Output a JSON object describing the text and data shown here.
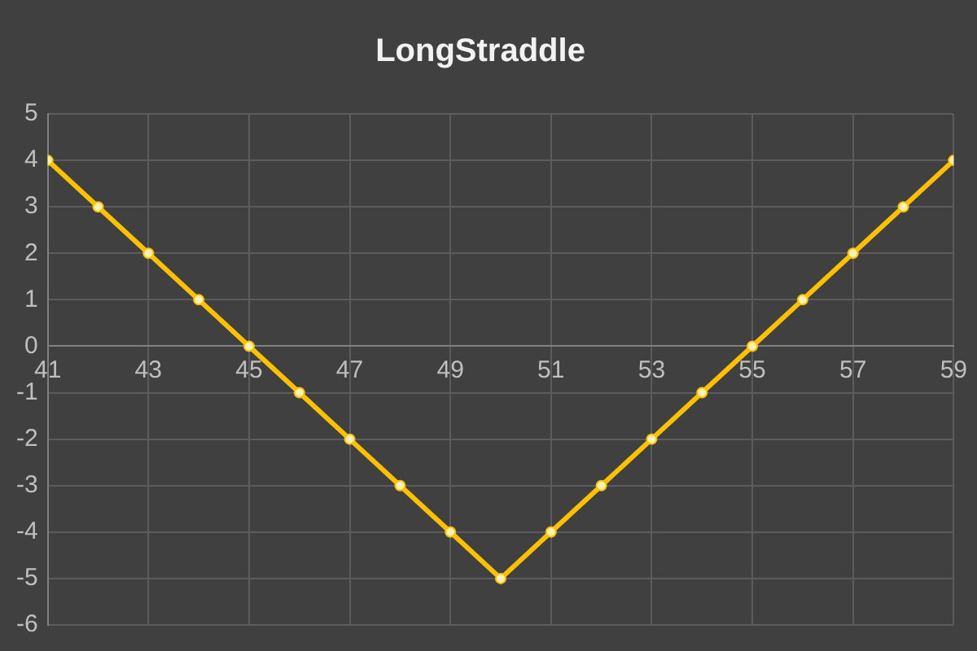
{
  "chart_data": {
    "type": "line",
    "title": "LongStraddle",
    "x": [
      41,
      42,
      43,
      44,
      45,
      46,
      47,
      48,
      49,
      50,
      51,
      52,
      53,
      54,
      55,
      56,
      57,
      58,
      59
    ],
    "values": [
      4,
      3,
      2,
      1,
      0,
      -1,
      -2,
      -3,
      -4,
      -5,
      -4,
      -3,
      -2,
      -1,
      0,
      1,
      2,
      3,
      4
    ],
    "color": "#ffc000",
    "xlim": [
      41,
      59
    ],
    "xticks": [
      41,
      43,
      45,
      47,
      49,
      51,
      53,
      55,
      57,
      59
    ],
    "ylim": [
      -6,
      5
    ],
    "yticks": [
      -6,
      -5,
      -4,
      -3,
      -2,
      -1,
      0,
      1,
      2,
      3,
      4,
      5
    ],
    "grid": true,
    "marker": "circle",
    "line_style": "solid"
  }
}
